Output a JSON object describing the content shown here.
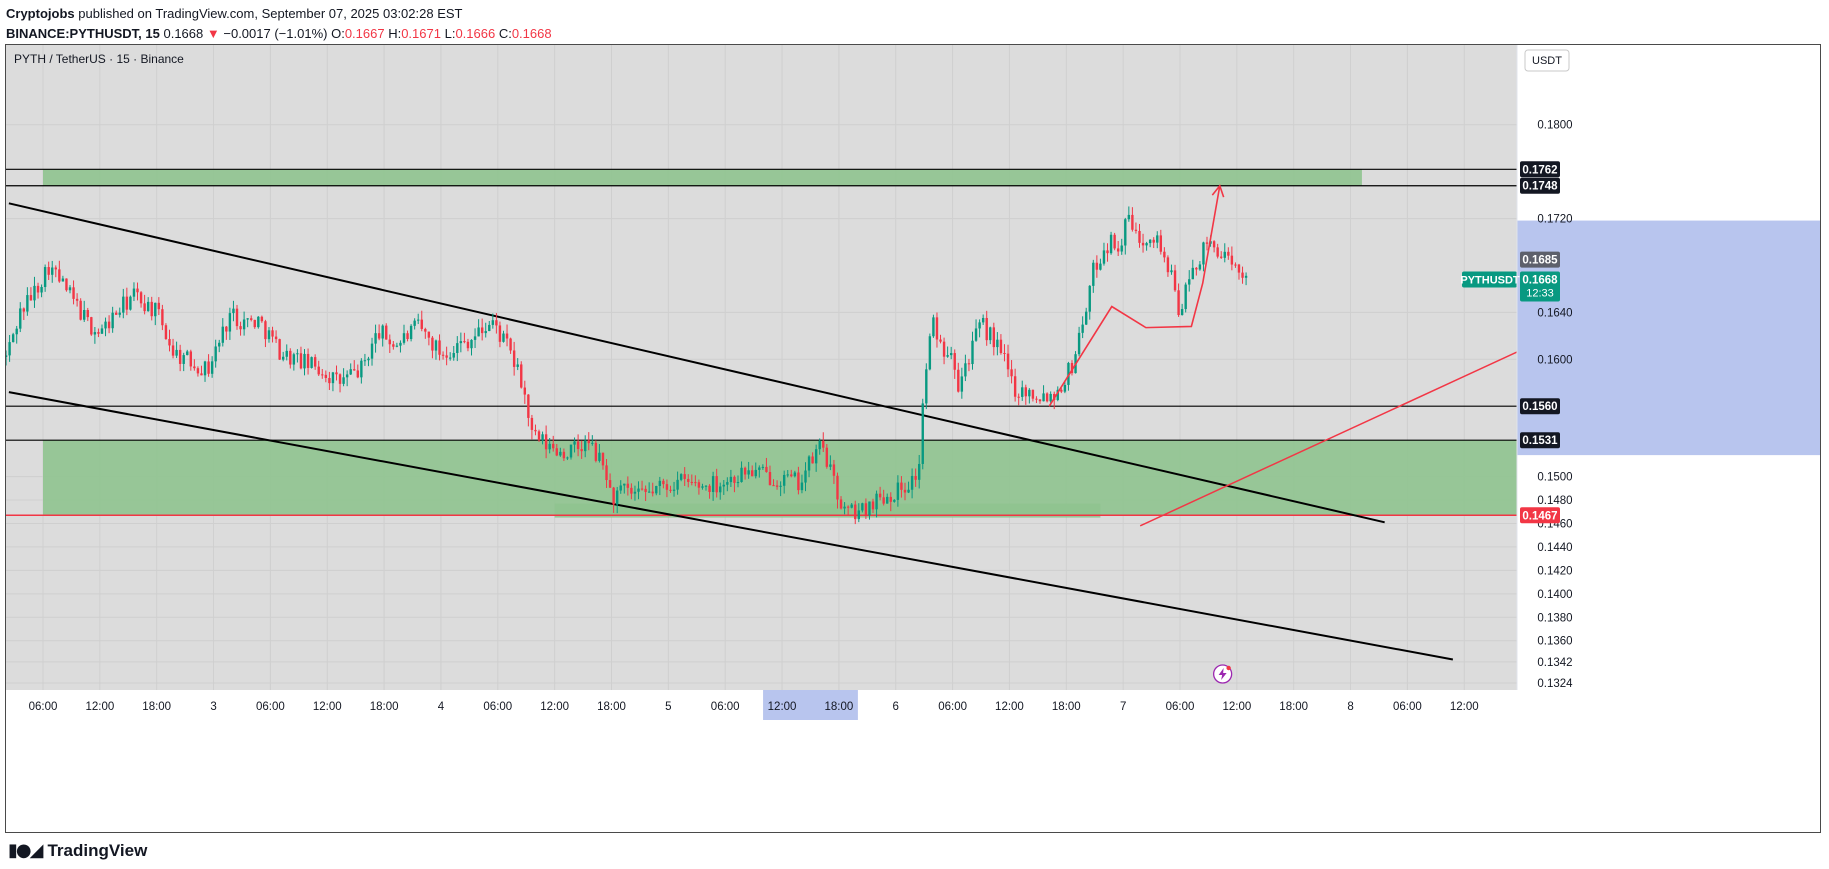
{
  "header": {
    "author": "Cryptojobs",
    "published_text": "published on TradingView.com, September 07, 2025 03:02:28 EST",
    "symbol_line": "BINANCE:PYTHUSDT, 15",
    "last": "0.1668",
    "change_arrow": "▼",
    "change": "−0.0017 (−1.01%)",
    "o_label": "O:",
    "o": "0.1667",
    "h_label": "H:",
    "h": "0.1671",
    "l_label": "L:",
    "l": "0.1666",
    "c_label": "C:",
    "c": "0.1668"
  },
  "footer": {
    "brand": "TradingView",
    "logo_icon": "tradingview-logo-icon"
  },
  "colors": {
    "up": "#089981",
    "down": "#f23645",
    "zone": "#8fc38f",
    "plot_bg": "#dcdcdc",
    "axis_bg": "#b8c5ee",
    "line_red": "#f23645",
    "line_black": "#000000",
    "badge_teal": "#089981"
  },
  "chart_data": {
    "type": "candlestick",
    "title": "PYTH / TetherUS · 15 · Binance",
    "currency_button": "USDT",
    "ylim": [
      0.1318,
      0.1868
    ],
    "y_ticks": [
      "0.1800",
      "0.1720",
      "0.1640",
      "0.1600",
      "0.1500",
      "0.1480",
      "0.1460",
      "0.1440",
      "0.1420",
      "0.1400",
      "0.1380",
      "0.1360",
      "0.1342",
      "0.1324"
    ],
    "x_ticks": [
      "06:00",
      "12:00",
      "18:00",
      "3",
      "06:00",
      "12:00",
      "18:00",
      "4",
      "06:00",
      "12:00",
      "18:00",
      "5",
      "06:00",
      "12:00",
      "18:00",
      "6",
      "06:00",
      "12:00",
      "18:00",
      "7",
      "06:00",
      "12:00",
      "18:00",
      "8",
      "06:00",
      "12:00"
    ],
    "x_highlight": [
      13,
      14
    ],
    "price_badges": [
      {
        "value": "0.1762",
        "style": "black"
      },
      {
        "value": "0.1748",
        "style": "black"
      },
      {
        "value": "0.1685",
        "style": "gray"
      },
      {
        "value": "0.1560",
        "style": "black"
      },
      {
        "value": "0.1531",
        "style": "black"
      },
      {
        "value": "0.1467",
        "style": "red"
      }
    ],
    "last_price": {
      "symbol": "PYTHUSDT",
      "value": "0.1668",
      "countdown": "12:33"
    },
    "horizontal_levels": [
      {
        "price": 0.1762,
        "color": "black"
      },
      {
        "price": 0.1748,
        "color": "black"
      },
      {
        "price": 0.156,
        "color": "black"
      },
      {
        "price": 0.1531,
        "color": "black"
      },
      {
        "price": 0.1467,
        "color": "red"
      }
    ],
    "zones": [
      {
        "name": "upper supply zone",
        "from_tick": 0,
        "to_tick": 23.2,
        "price_low": 0.1748,
        "price_high": 0.1762
      },
      {
        "name": "lower demand zone",
        "from_tick": 0,
        "to_tick": 26.5,
        "price_low": 0.1467,
        "price_high": 0.1531
      },
      {
        "name": "base zone",
        "from_tick": 9.0,
        "to_tick": 18.6,
        "price_low": 0.1465,
        "price_high": 0.1477
      }
    ],
    "trendlines": [
      {
        "color": "black",
        "points": [
          [
            -0.6,
            0.1733
          ],
          [
            23.6,
            0.1461
          ]
        ]
      },
      {
        "color": "black",
        "points": [
          [
            -0.6,
            0.1572
          ],
          [
            24.8,
            0.1344
          ]
        ]
      },
      {
        "color": "red",
        "points": [
          [
            19.3,
            0.1458
          ],
          [
            26.5,
            0.1619
          ]
        ]
      }
    ],
    "projection_path": {
      "color": "red",
      "points": [
        [
          17.7,
          0.156
        ],
        [
          18.8,
          0.1645
        ],
        [
          19.4,
          0.1627
        ],
        [
          20.2,
          0.1628
        ],
        [
          20.4,
          0.1665
        ],
        [
          20.7,
          0.1748
        ]
      ]
    },
    "series_anchors": [
      [
        -0.65,
        0.1602
      ],
      [
        -0.4,
        0.164
      ],
      [
        -0.1,
        0.1662
      ],
      [
        0.1,
        0.168
      ],
      [
        0.4,
        0.166
      ],
      [
        0.8,
        0.163
      ],
      [
        1.0,
        0.1622
      ],
      [
        1.3,
        0.164
      ],
      [
        1.6,
        0.1655
      ],
      [
        2.0,
        0.164
      ],
      [
        2.3,
        0.1606
      ],
      [
        2.6,
        0.1598
      ],
      [
        2.9,
        0.1591
      ],
      [
        3.3,
        0.164
      ],
      [
        3.5,
        0.1632
      ],
      [
        3.8,
        0.1633
      ],
      [
        4.2,
        0.1605
      ],
      [
        4.6,
        0.1597
      ],
      [
        4.9,
        0.1591
      ],
      [
        5.2,
        0.158
      ],
      [
        5.6,
        0.1592
      ],
      [
        5.9,
        0.1624
      ],
      [
        6.2,
        0.1612
      ],
      [
        6.6,
        0.1628
      ],
      [
        7.0,
        0.1605
      ],
      [
        7.3,
        0.1612
      ],
      [
        7.6,
        0.162
      ],
      [
        7.9,
        0.1632
      ],
      [
        8.2,
        0.1608
      ],
      [
        8.45,
        0.1575
      ],
      [
        8.6,
        0.1535
      ],
      [
        8.9,
        0.1525
      ],
      [
        9.2,
        0.152
      ],
      [
        9.6,
        0.1528
      ],
      [
        9.9,
        0.1505
      ],
      [
        10.0,
        0.148
      ],
      [
        10.2,
        0.1488
      ],
      [
        10.5,
        0.1482
      ],
      [
        10.8,
        0.149
      ],
      [
        11.2,
        0.1496
      ],
      [
        11.6,
        0.1492
      ],
      [
        12.0,
        0.1496
      ],
      [
        12.4,
        0.1505
      ],
      [
        12.8,
        0.15
      ],
      [
        13.3,
        0.1495
      ],
      [
        13.6,
        0.152
      ],
      [
        13.7,
        0.153
      ],
      [
        13.9,
        0.1495
      ],
      [
        14.1,
        0.147
      ],
      [
        14.4,
        0.147
      ],
      [
        14.6,
        0.148
      ],
      [
        14.9,
        0.1485
      ],
      [
        15.2,
        0.1493
      ],
      [
        15.4,
        0.1503
      ],
      [
        15.45,
        0.154
      ],
      [
        15.5,
        0.158
      ],
      [
        15.65,
        0.1632
      ],
      [
        15.8,
        0.161
      ],
      [
        16.0,
        0.161
      ],
      [
        16.1,
        0.158
      ],
      [
        16.3,
        0.1605
      ],
      [
        16.5,
        0.163
      ],
      [
        16.7,
        0.1618
      ],
      [
        16.9,
        0.16
      ],
      [
        17.1,
        0.1575
      ],
      [
        17.5,
        0.157
      ],
      [
        17.8,
        0.157
      ],
      [
        18.1,
        0.1595
      ],
      [
        18.3,
        0.1635
      ],
      [
        18.5,
        0.168
      ],
      [
        18.75,
        0.17
      ],
      [
        18.95,
        0.1698
      ],
      [
        19.1,
        0.1722
      ],
      [
        19.25,
        0.17
      ],
      [
        19.5,
        0.171
      ],
      [
        19.7,
        0.1692
      ],
      [
        19.9,
        0.166
      ],
      [
        20.0,
        0.164
      ],
      [
        20.15,
        0.1665
      ],
      [
        20.3,
        0.1684
      ],
      [
        20.5,
        0.1698
      ],
      [
        20.7,
        0.1694
      ],
      [
        20.9,
        0.1676
      ],
      [
        21.1,
        0.1675
      ],
      [
        21.2,
        0.1668
      ]
    ]
  }
}
